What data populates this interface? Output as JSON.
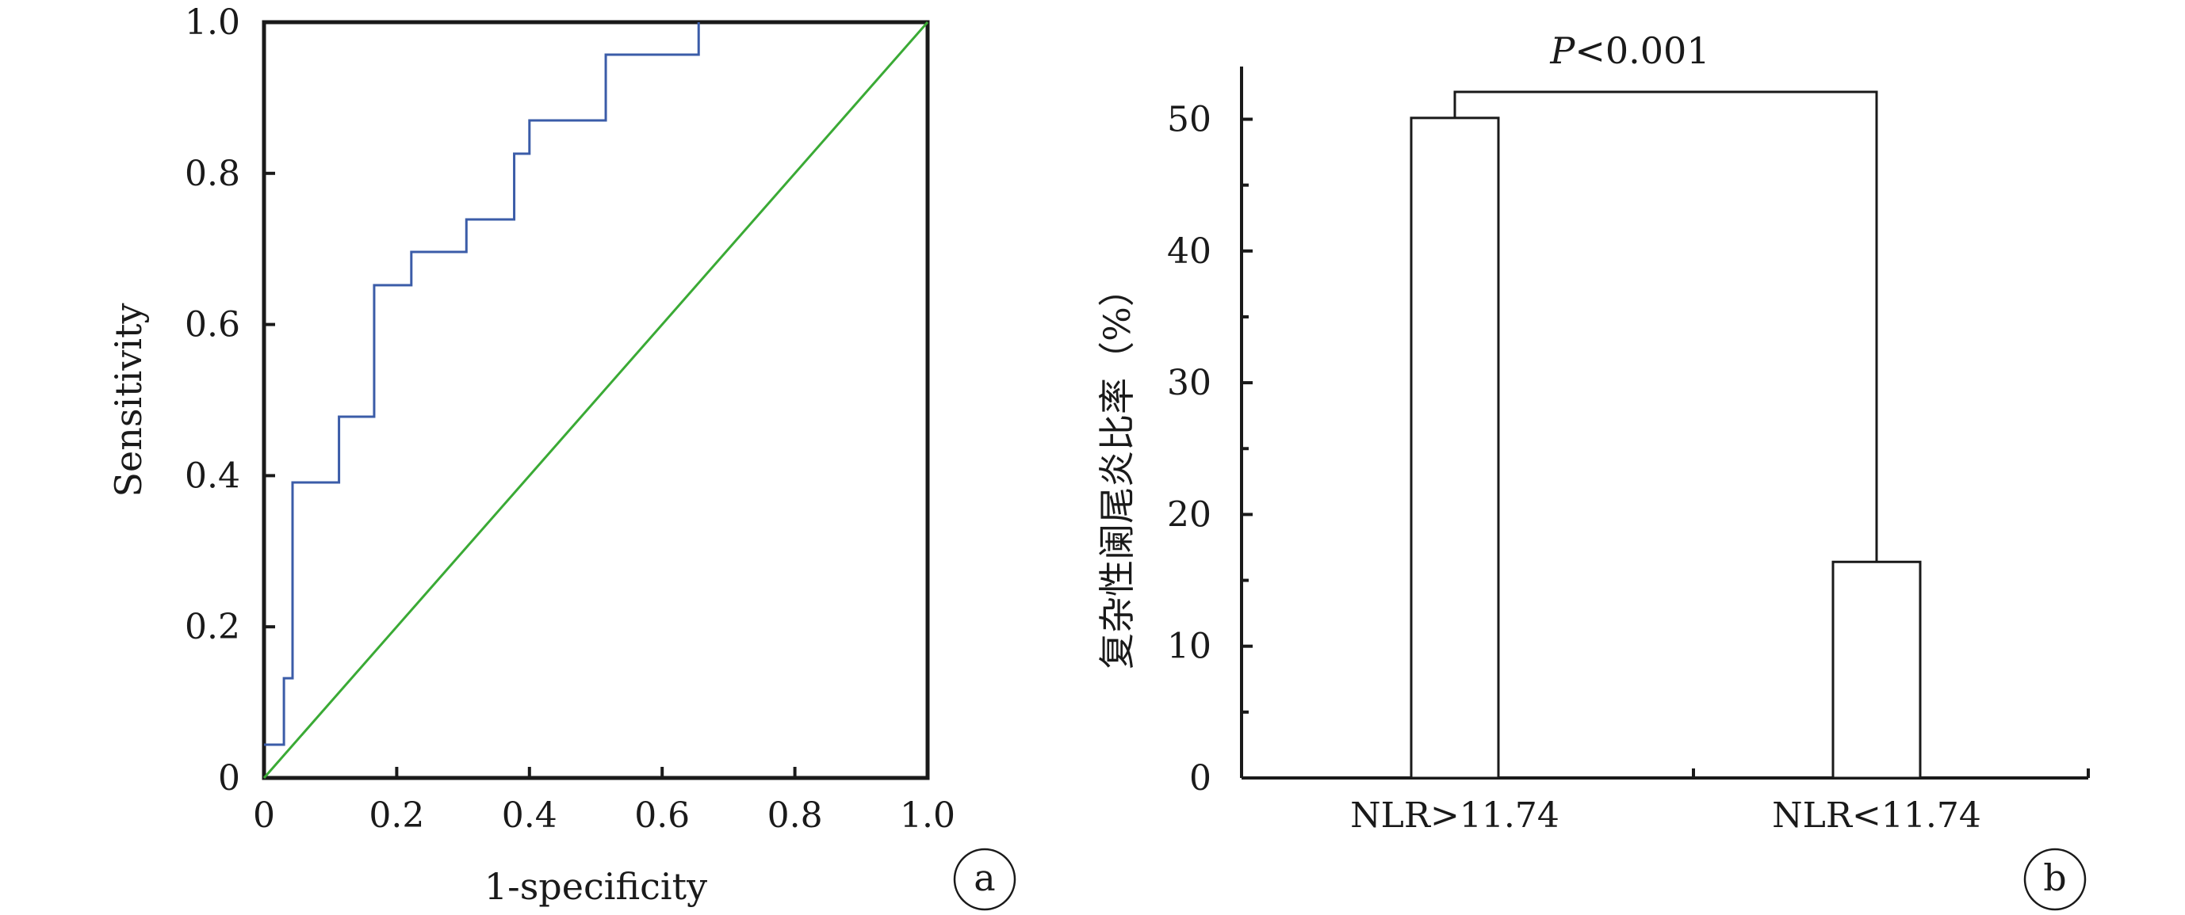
{
  "chart_data": [
    {
      "type": "line",
      "xlabel": "1-specificity",
      "ylabel": "Sensitivity",
      "xlim": [
        0,
        1
      ],
      "ylim": [
        0,
        1
      ],
      "x_ticks": [
        "0",
        "0.2",
        "0.4",
        "0.6",
        "0.8",
        "1.0"
      ],
      "y_ticks": [
        "0",
        "0.2",
        "0.4",
        "0.6",
        "0.8",
        "1.0"
      ],
      "panel_label": "a",
      "series": [
        {
          "color": "#3b5ca8",
          "step": true,
          "x": [
            0,
            0.03,
            0.03,
            0.043,
            0.043,
            0.113,
            0.113,
            0.166,
            0.166,
            0.222,
            0.222,
            0.305,
            0.305,
            0.377,
            0.377,
            0.4,
            0.4,
            0.515,
            0.515,
            0.655,
            0.655
          ],
          "y": [
            0.044,
            0.044,
            0.132,
            0.132,
            0.391,
            0.391,
            0.478,
            0.478,
            0.652,
            0.652,
            0.696,
            0.696,
            0.739,
            0.739,
            0.826,
            0.826,
            0.87,
            0.87,
            0.957,
            0.957,
            1.0
          ]
        },
        {
          "color": "#3aaa35",
          "x": [
            0,
            1
          ],
          "y": [
            0,
            1
          ]
        }
      ]
    },
    {
      "type": "bar",
      "categories": [
        "NLR>11.74",
        "NLR<11.74"
      ],
      "values": [
        50.1,
        16.4
      ],
      "ylabel": "复杂性阑尾炎比率（%）",
      "ylim": [
        0,
        54
      ],
      "y_ticks": [
        "0",
        "10",
        "20",
        "30",
        "40",
        "50"
      ],
      "annotation": {
        "text": "P<0.001",
        "italic_part": "P",
        "plain_part": "<0.001"
      },
      "panel_label": "b"
    }
  ]
}
